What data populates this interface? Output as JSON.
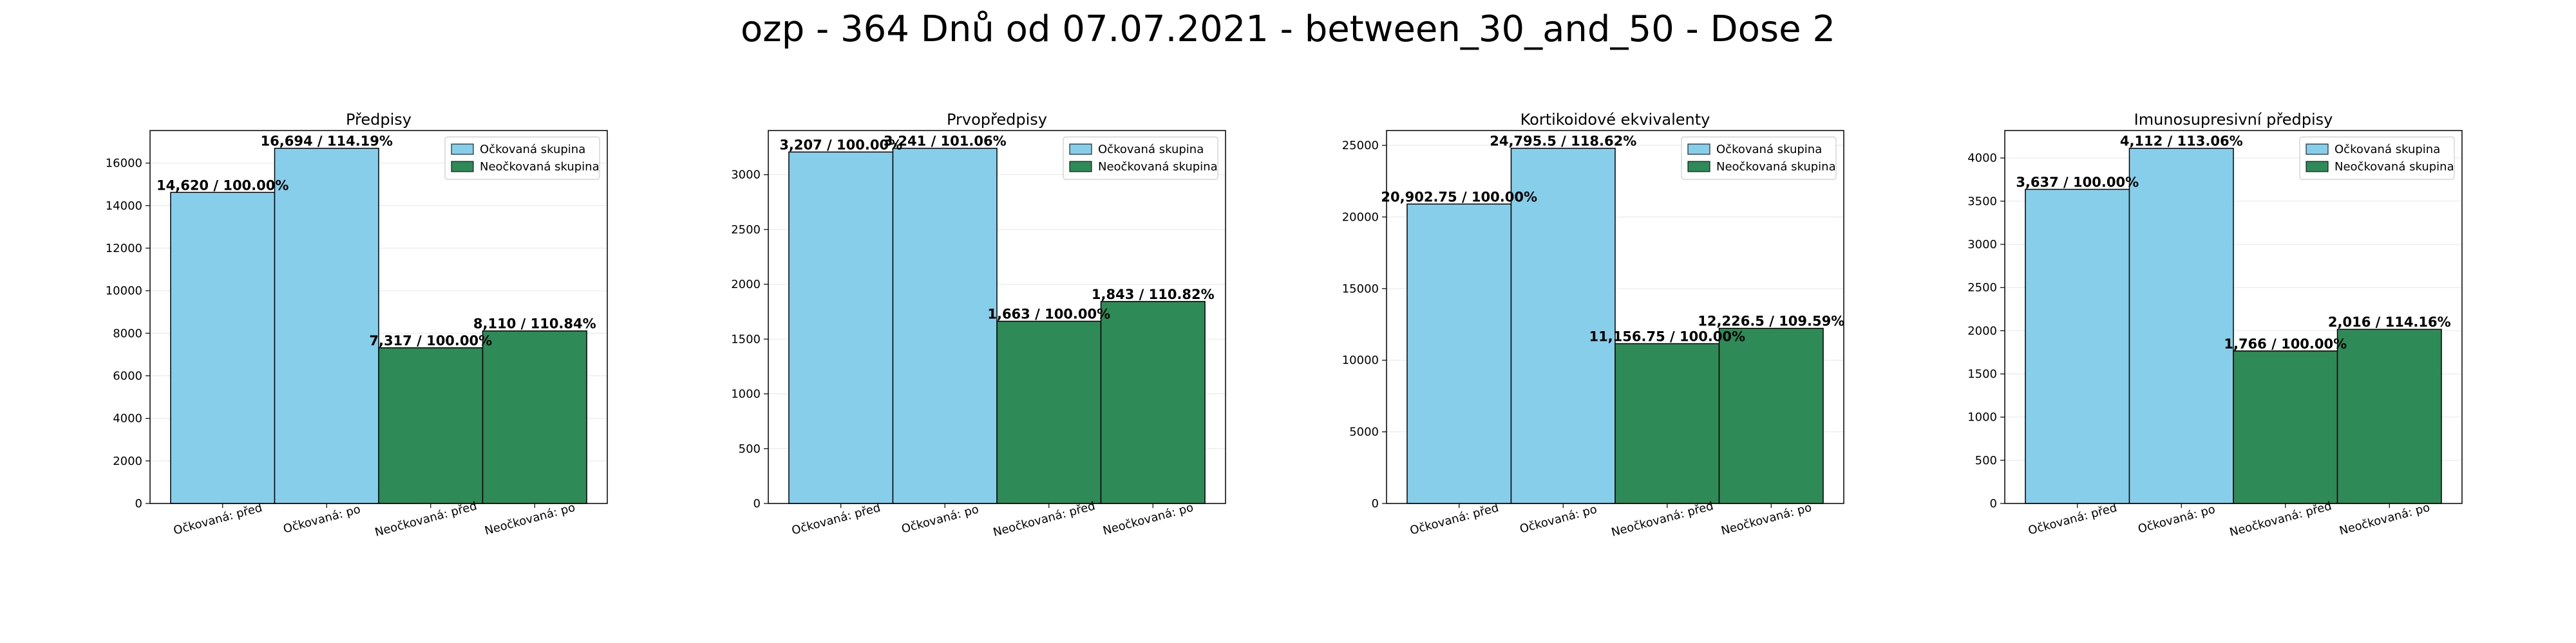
{
  "suptitle": "ozp - 364 Dnů od 07.07.2021 - between_30_and_50 - Dose 2",
  "colors": {
    "vaccinated": "#87ceeb",
    "unvaccinated": "#2e8b57",
    "bar_edge": "#000000",
    "grid": "#e6e6e6"
  },
  "chart_data": [
    {
      "type": "bar",
      "title": "Předpisy",
      "categories": [
        "Očkovaná: před",
        "Očkovaná: po",
        "Neočkovaná: před",
        "Neočkovaná: po"
      ],
      "values": [
        14620,
        16694,
        7317,
        8110
      ],
      "bar_labels": [
        "14,620 / 100.00%",
        "16,694 / 114.19%",
        "7,317 / 100.00%",
        "8,110 / 110.84%"
      ],
      "bar_groups": [
        "vaccinated",
        "vaccinated",
        "unvaccinated",
        "unvaccinated"
      ],
      "ylim": [
        0,
        17529
      ],
      "yticks": [
        0,
        2000,
        4000,
        6000,
        8000,
        10000,
        12000,
        14000,
        16000
      ],
      "legend": [
        "Očkovaná skupina",
        "Neočkovaná skupina"
      ],
      "legend_position": "upper right",
      "grid": true
    },
    {
      "type": "bar",
      "title": "Prvopředpisy",
      "categories": [
        "Očkovaná: před",
        "Očkovaná: po",
        "Neočkovaná: před",
        "Neočkovaná: po"
      ],
      "values": [
        3207,
        3241,
        1663,
        1843
      ],
      "bar_labels": [
        "3,207 / 100.00%",
        "3,241 / 101.06%",
        "1,663 / 100.00%",
        "1,843 / 110.82%"
      ],
      "bar_groups": [
        "vaccinated",
        "vaccinated",
        "unvaccinated",
        "unvaccinated"
      ],
      "ylim": [
        0,
        3403
      ],
      "yticks": [
        0,
        500,
        1000,
        1500,
        2000,
        2500,
        3000
      ],
      "legend": [
        "Očkovaná skupina",
        "Neočkovaná skupina"
      ],
      "legend_position": "upper right",
      "grid": true
    },
    {
      "type": "bar",
      "title": "Kortikoidové ekvivalenty",
      "categories": [
        "Očkovaná: před",
        "Očkovaná: po",
        "Neočkovaná: před",
        "Neočkovaná: po"
      ],
      "values": [
        20902.75,
        24795.5,
        11156.75,
        12226.5
      ],
      "bar_labels": [
        "20,902.75 / 100.00%",
        "24,795.5 / 118.62%",
        "11,156.75 / 100.00%",
        "12,226.5 / 109.59%"
      ],
      "bar_groups": [
        "vaccinated",
        "vaccinated",
        "unvaccinated",
        "unvaccinated"
      ],
      "ylim": [
        0,
        26035
      ],
      "yticks": [
        0,
        5000,
        10000,
        15000,
        20000,
        25000
      ],
      "legend": [
        "Očkovaná skupina",
        "Neočkovaná skupina"
      ],
      "legend_position": "upper right",
      "grid": true
    },
    {
      "type": "bar",
      "title": "Imunosupresivní předpisy",
      "categories": [
        "Očkovaná: před",
        "Očkovaná: po",
        "Neočkovaná: před",
        "Neočkovaná: po"
      ],
      "values": [
        3637,
        4112,
        1766,
        2016
      ],
      "bar_labels": [
        "3,637 / 100.00%",
        "4,112 / 113.06%",
        "1,766 / 100.00%",
        "2,016 / 114.16%"
      ],
      "bar_groups": [
        "vaccinated",
        "vaccinated",
        "unvaccinated",
        "unvaccinated"
      ],
      "ylim": [
        0,
        4318
      ],
      "yticks": [
        0,
        500,
        1000,
        1500,
        2000,
        2500,
        3000,
        3500,
        4000
      ],
      "legend": [
        "Očkovaná skupina",
        "Neočkovaná skupina"
      ],
      "legend_position": "upper right",
      "grid": true
    }
  ]
}
